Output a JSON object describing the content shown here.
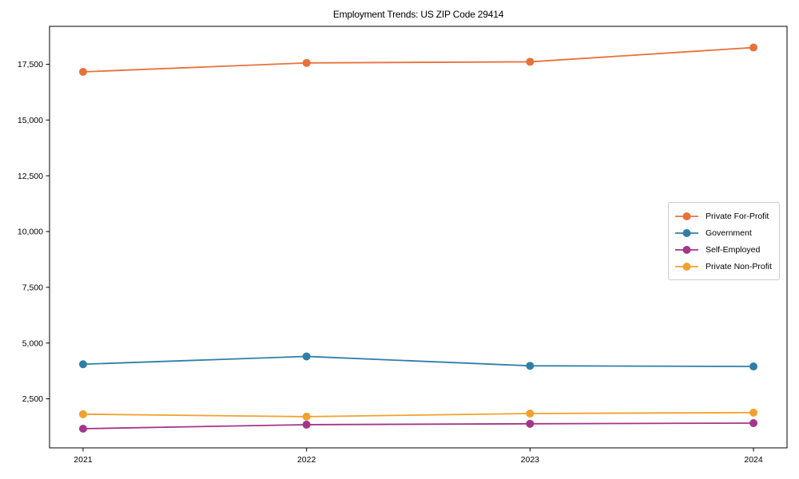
{
  "chart_data": {
    "type": "line",
    "title": "Employment Trends: US ZIP Code 29414",
    "x": [
      2021,
      2022,
      2023,
      2024
    ],
    "xtick_labels": [
      "2021",
      "2022",
      "2023",
      "2024"
    ],
    "series": [
      {
        "name": "Private For-Profit",
        "color": "#E8713B",
        "values": [
          17160,
          17560,
          17610,
          18250
        ]
      },
      {
        "name": "Government",
        "color": "#2E7FA8",
        "values": [
          4050,
          4400,
          3980,
          3950
        ]
      },
      {
        "name": "Self-Employed",
        "color": "#A3368B",
        "values": [
          1160,
          1340,
          1380,
          1410
        ]
      },
      {
        "name": "Private Non-Profit",
        "color": "#F0A22E",
        "values": [
          1810,
          1700,
          1840,
          1880
        ]
      }
    ],
    "yticks": [
      2500,
      5000,
      7500,
      10000,
      12500,
      15000,
      17500
    ],
    "ytick_labels": [
      "2,500",
      "5,000",
      "7,500",
      "10,000",
      "12,500",
      "15,000",
      "17,500"
    ],
    "ylim": [
      300,
      19200
    ],
    "xlim": [
      2020.85,
      2024.15
    ],
    "xlabel": "",
    "ylabel": "",
    "grid": false,
    "legend_position": "center-right",
    "axis_color": "#000000",
    "marker_radius": 5,
    "line_width": 1.8
  }
}
